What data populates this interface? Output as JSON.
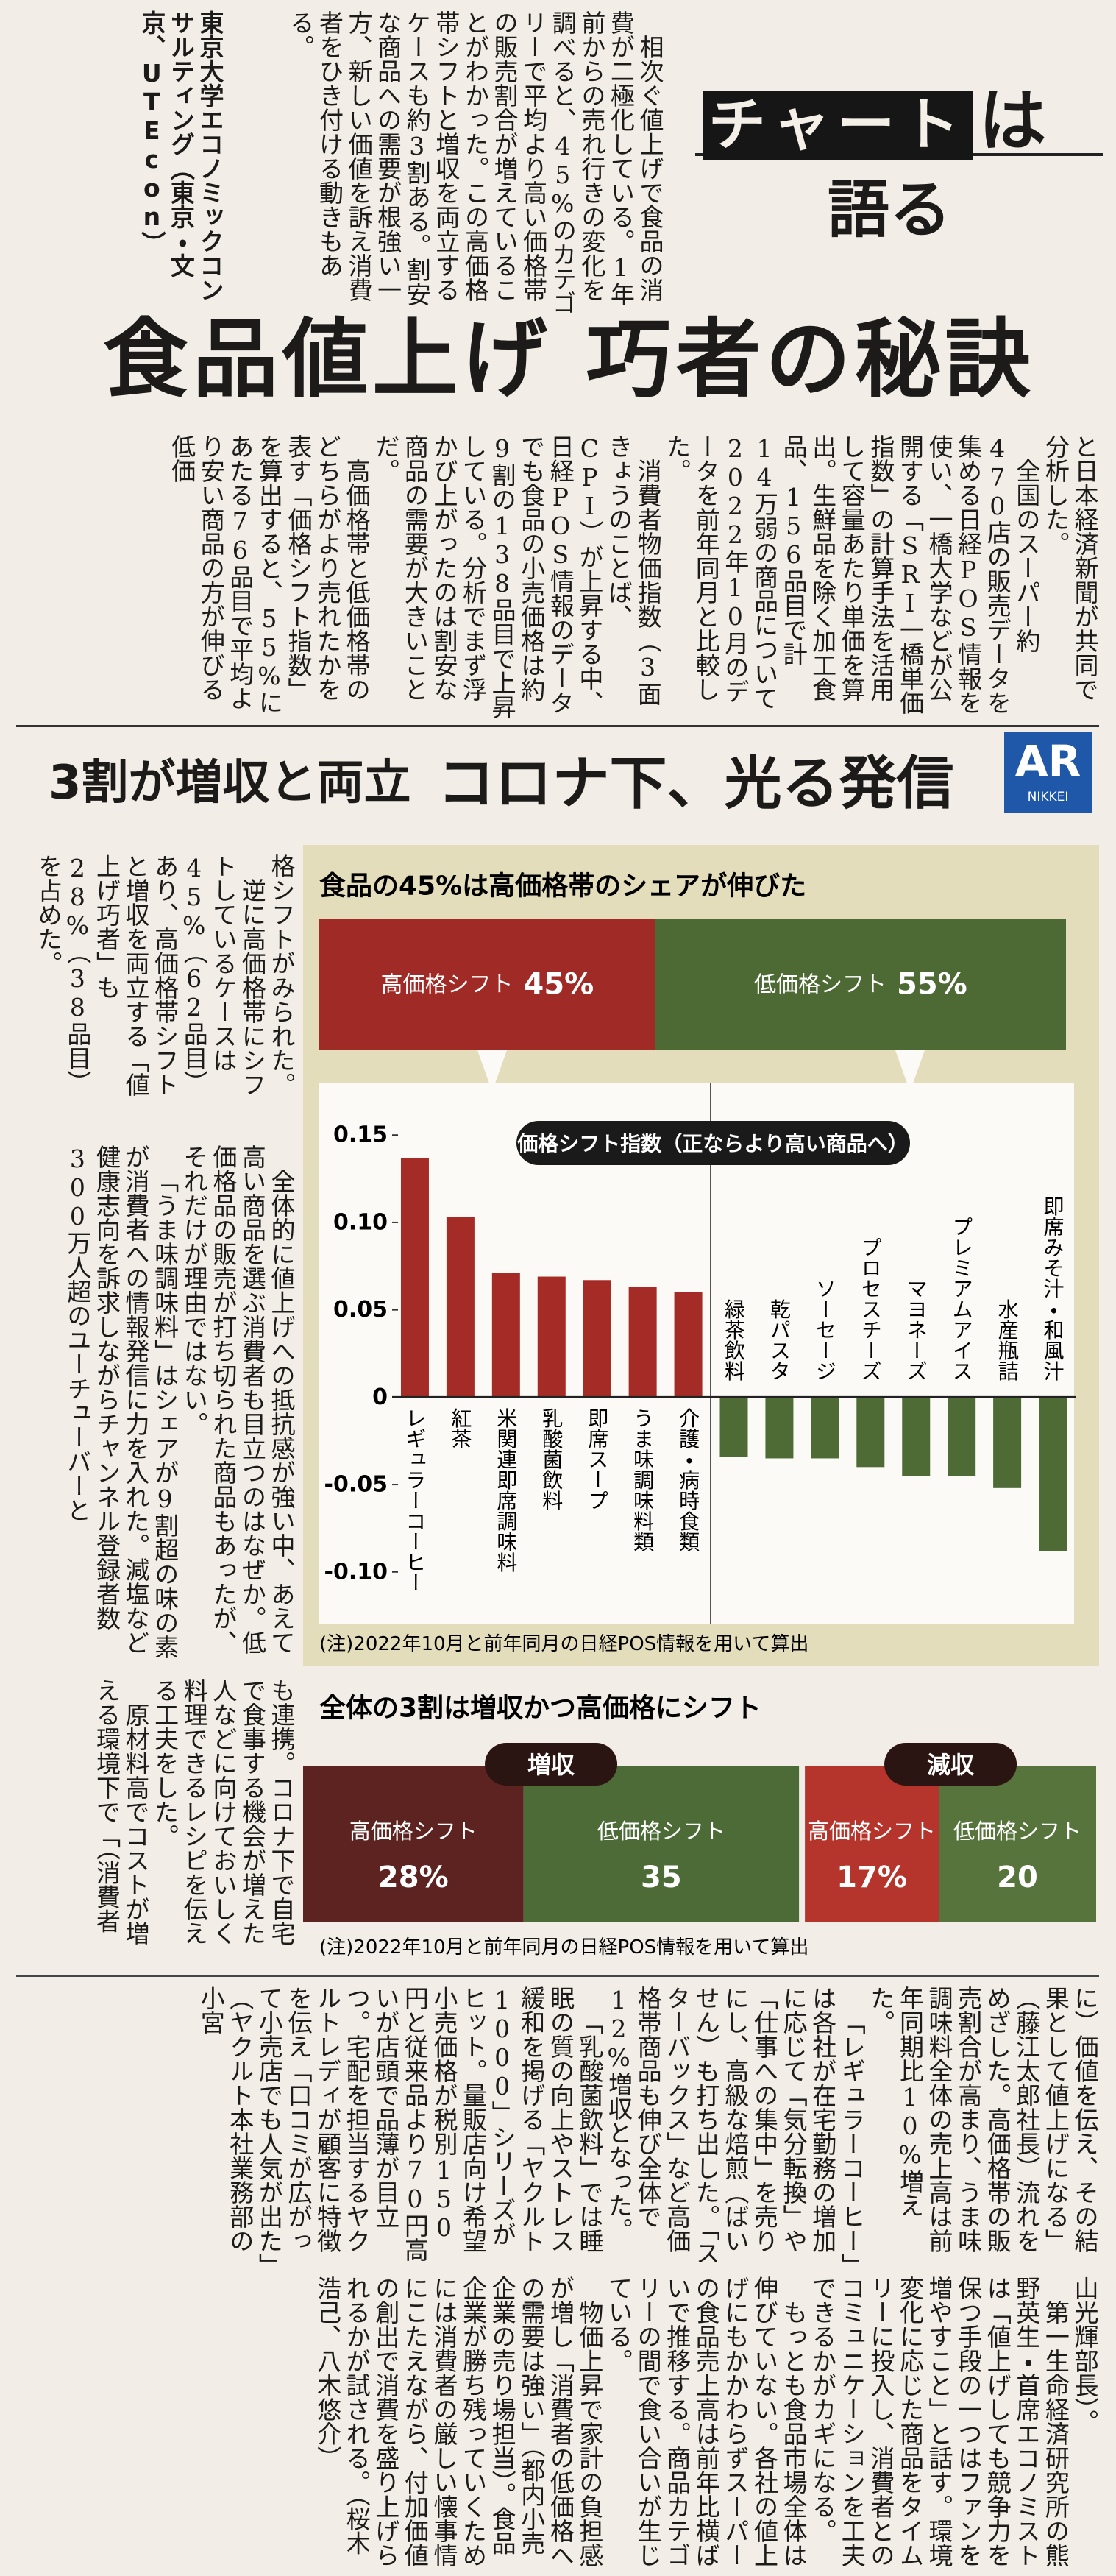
{
  "kicker": {
    "boxed": "チャート",
    "plain": "は",
    "second_line": "語る"
  },
  "headline": "食品値上げ 巧者の秘訣",
  "lead": [
    "相次ぐ値上げで食品の消費が二極化している。1年前からの売れ行きの変化を調べると、45%のカテゴリーで平均より高い価格帯の販売割合が増えていることがわかった。この高価格帯シフトと増収を両立するケースも約3割ある。割安な商品への需要が根強い一方、新しい価値を訴え消費者をひき付ける動きもある。"
  ],
  "byline": [
    "東京大学エコノミックコンサルティング（東京・文京、UTEcon）"
  ],
  "body1": [
    "と日本経済新聞が共同で分析した。",
    "全国のスーパー約470店の販売データを集める日経POS情報を使い、一橋大学などが公開する「SRI一橋単価指数」の計算手法を活用して容量あたり単価を算出。生鮮品を除く加工食品、156品目で計14万弱の商品について2022年10月のデータを前年同月と比較した。",
    "消費者物価指数（3面きょうのことば、CPI）が上昇する中、日経POS情報のデータでも食品の小売価格は約9割の138品目で上昇している。分析でまず浮かび上がったのは割安な商品の需要が大きいことだ。",
    "高価格帯と低価格帯のどちらがより売れたかを表す「価格シフト指数」を算出すると、55%にあたる76品目で平均より安い商品の方が伸びる低価"
  ],
  "subheadline": [
    "3割が増収と両立",
    "コロナ下、光る発信"
  ],
  "ar_badge": {
    "main": "AR",
    "sub": "NIKKEI"
  },
  "body2": [
    "格シフトがみられた。",
    "逆に高価格帯にシフトしているケースは45%（62品目）あり、高価格帯シフトと増収を両立する「値上げ巧者」も28%（38品目）を占めた。"
  ],
  "body3": [
    "全体的に値上げへの抵抗感が強い中、あえて高い商品を選ぶ消費者も目立つのはなぜか。低価格品の販売が打ち切られた商品もあったが、それだけが理由ではない。",
    "「うま味調味料」はシェアが9割超の味の素が消費者への情報発信に力を入れた。減塩など健康志向を訴求しながらチャンネル登録者数300万人超のユーチューバーと"
  ],
  "body4": [
    "も連携。コロナ下で自宅で食事する機会が増えた人などに向けておいしく料理できるレシピを伝える工夫をした。",
    "原材料高でコストが増える環境下で「（消費者"
  ],
  "body5a": [
    "に）価値を伝え、その結果として値上げになる」（藤江太郎社長）流れをめざした。高価格帯の販売割合が高まり、うま味調味料全体の売上高は前年同期比10%増えた。",
    "「レギュラーコーヒー」は各社が在宅勤務の増加に応じて「気分転換」や「仕事への集中」を売りにし、高級な焙煎（ばいせん）も打ち出した。「スターバックス」など高価格帯商品も伸び全体で12%増収となった。",
    "「乳酸菌飲料」では睡眠の質の向上やストレス緩和を掲げる「ヤクルト1000」シリーズがヒット。量販店向け希望小売価格が税別150円と従来品より70円高いが店頭で品薄が目立つ。宅配を担当するヤクルトレディが顧客に特徴を伝え「口コミが広がって小売店でも人気が出た」（ヤクルト本社業務部の小宮"
  ],
  "body5b": [
    "山光輝部長）。",
    "第一生命経済研究所の熊野英生・首席エコノミストは「値上げしても競争力を保つ手段の一つはファンを増やすこと」と話す。環境変化に応じた商品をタイムリーに投入し、消費者とのコミュニケーションを工夫できるかがカギになる。",
    "もっとも食品市場全体は伸びていない。各社の値上げにもかかわらずスーパーの食品売上高は前年比横ばいで推移する。商品カテゴリーの間で食い合いが生じている。",
    "物価上昇で家計の負担感が増し「消費者の低価格への需要は強い」（都内小売企業の売り場担当）。食品企業が勝ち残っていくためには消費者の厳しい懐事情にこたえながら、付加価値の創出で消費を盛り上げられるかが試される。（桜木浩己、八木悠介）"
  ],
  "chart_data": [
    {
      "type": "share",
      "title": "食品の45%は高価格帯のシェアが伸びた",
      "series": [
        {
          "name": "高価格シフト",
          "color": "#a02a26",
          "values": [
            45
          ],
          "value_labels": [
            "45%"
          ]
        },
        {
          "name": "低価格シフト",
          "color": "#4d6a34",
          "values": [
            55
          ],
          "value_labels": [
            "55%"
          ]
        }
      ]
    },
    {
      "type": "bar",
      "title": "価格シフト指数（正ならより高い商品へ）",
      "categories": [
        "レギュラーコーヒー",
        "紅茶",
        "米関連即席調味料",
        "乳酸菌飲料",
        "即席スープ",
        "うま味調味料類",
        "介護・病時食類",
        "緑茶飲料",
        "乾パスタ",
        "ソーセージ",
        "プロセスチーズ",
        "マヨネーズ",
        "プレミアムアイス",
        "水産瓶詰",
        "即席みそ汁・和風汁"
      ],
      "values": [
        0.137,
        0.103,
        0.071,
        0.069,
        0.067,
        0.063,
        0.06,
        -0.034,
        -0.035,
        -0.035,
        -0.04,
        -0.045,
        -0.045,
        -0.052,
        -0.088
      ],
      "color_positive": "#a52b27",
      "color_negative": "#4f6b35",
      "ylim": [
        -0.13,
        0.18
      ],
      "yticks": [
        0.15,
        {
          "value": 0.1,
          "label": "0.10"
        },
        0.05,
        0,
        -0.05,
        {
          "value": -0.1,
          "label": "-0.10"
        }
      ],
      "grid": false,
      "note": "(注)2022年10月と前年同月の日経POS情報を用いて算出"
    },
    {
      "type": "share",
      "title": "全体の3割は増収かつ高価格にシフト",
      "groups": [
        {
          "name": "増収",
          "series": [
            {
              "name": "高価格シフト",
              "color": "#5c2320",
              "values": [
                28
              ],
              "value_labels": [
                "28%"
              ]
            },
            {
              "name": "低価格シフト",
              "color": "#4d6b37",
              "values": [
                35
              ]
            }
          ]
        },
        {
          "name": "減収",
          "series": [
            {
              "name": "高価格シフト",
              "color": "#b5352c",
              "values": [
                17
              ],
              "value_labels": [
                "17%"
              ]
            },
            {
              "name": "低価格シフト",
              "color": "#58743d",
              "values": [
                20
              ]
            }
          ]
        }
      ],
      "note": "(注)2022年10月と前年同月の日経POS情報を用いて算出"
    }
  ]
}
